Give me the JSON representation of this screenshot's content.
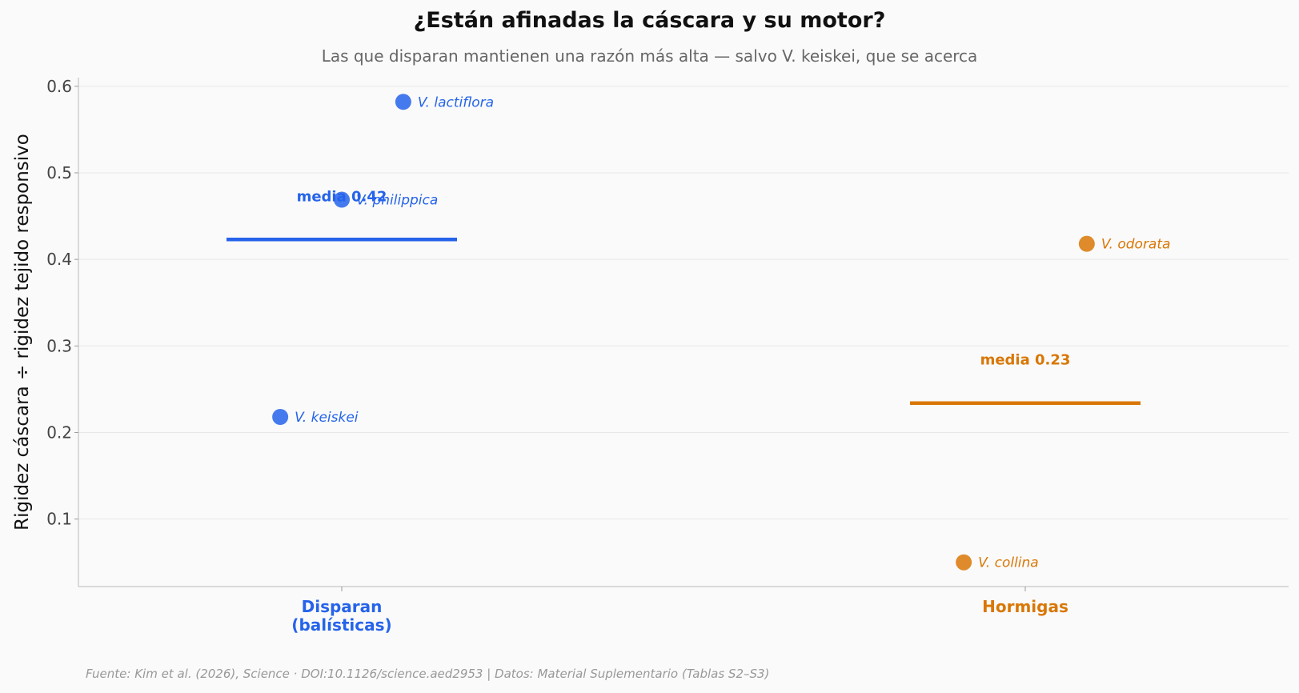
{
  "title": "¿Están afinadas la cáscara y su motor?",
  "subtitle": "Las que disparan mantienen una razón más alta — salvo V. keiskei, que se acerca",
  "source": "Fuente: Kim et al. (2026), Science · DOI:10.1126/science.aed2953 | Datos: Material Suplementario (Tablas S2–S3)",
  "chart_data": {
    "type": "scatter",
    "ylabel": "Rigidez cáscara ÷ rigidez tejido responsivo",
    "ylim": [
      0.022,
      0.61
    ],
    "yticks": [
      0.1,
      0.2,
      0.3,
      0.4,
      0.5,
      0.6
    ],
    "grid": true,
    "categories": [
      "Disparan\n(balísticas)",
      "Hormigas"
    ],
    "colors": {
      "Disparan": "#2563eb",
      "Hormigas": "#d97706"
    },
    "series": [
      {
        "category_index": 0,
        "color": "#2563eb",
        "mean": 0.423,
        "mean_label": "media 0.42",
        "points": [
          {
            "label": "V. lactiflora",
            "y": 0.582,
            "jitter": 0.09
          },
          {
            "label": "V. philippica",
            "y": 0.469,
            "jitter": 0.0
          },
          {
            "label": "V. keiskei",
            "y": 0.218,
            "jitter": -0.09
          }
        ]
      },
      {
        "category_index": 1,
        "color": "#d97706",
        "mean": 0.234,
        "mean_label": "media 0.23",
        "points": [
          {
            "label": "V. odorata",
            "y": 0.418,
            "jitter": 0.09
          },
          {
            "label": "V. collina",
            "y": 0.05,
            "jitter": -0.09
          }
        ]
      }
    ]
  }
}
